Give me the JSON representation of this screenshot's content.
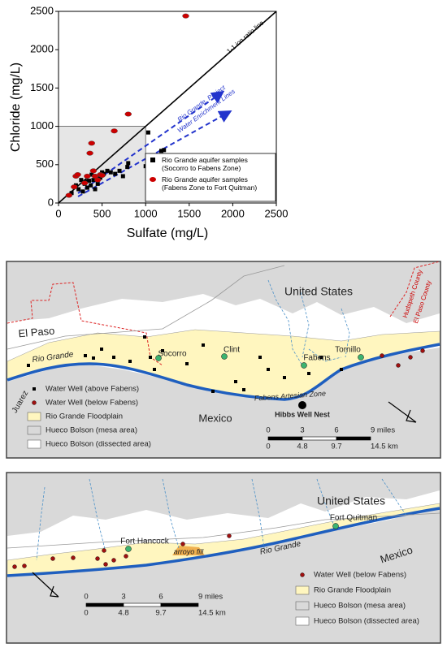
{
  "chart_data": {
    "type": "scatter",
    "xlabel": "Sulfate (mg/L)",
    "ylabel": "Chloride (mg/L)",
    "xlim": [
      0,
      2500
    ],
    "ylim": [
      0,
      2500
    ],
    "xticks": [
      0,
      500,
      1000,
      1500,
      2000,
      2500
    ],
    "yticks": [
      0,
      500,
      1000,
      1500,
      2000,
      2500
    ],
    "annotations": [
      "1-1 ion ratio line",
      "Rio Grande, Project",
      "Water Enrichment Lines"
    ],
    "series": [
      {
        "name": "Rio Grande aquifer samples (Socorro to Fabens Zone)",
        "color": "#000000",
        "marker": "square",
        "x": [
          150,
          200,
          230,
          260,
          280,
          300,
          310,
          330,
          350,
          370,
          380,
          400,
          420,
          450,
          450,
          480,
          500,
          520,
          560,
          600,
          650,
          700,
          740,
          790,
          800,
          1000,
          1030,
          1180,
          1210
        ],
        "y": [
          130,
          230,
          180,
          300,
          150,
          250,
          280,
          200,
          290,
          230,
          370,
          300,
          180,
          250,
          340,
          330,
          400,
          380,
          420,
          400,
          380,
          420,
          350,
          470,
          520,
          480,
          920,
          680,
          690
        ]
      },
      {
        "name": "Rio Grande aquifer samples (Fabens Zone to Fort Quitman)",
        "color": "#cc0000",
        "marker": "ellipse",
        "x": [
          120,
          180,
          200,
          220,
          300,
          330,
          360,
          380,
          400,
          420,
          450,
          480,
          500,
          640,
          800,
          1460
        ],
        "y": [
          100,
          210,
          350,
          370,
          260,
          350,
          650,
          780,
          420,
          350,
          300,
          370,
          360,
          940,
          1160,
          2440
        ]
      }
    ]
  },
  "maps": [
    {
      "labels": [
        "United States",
        "El Paso",
        "Hudspeth County",
        "El Paso County",
        "Rio Grande",
        "Socorro",
        "Clint",
        "Fabens",
        "Tornillo",
        "Fabens Artesian Zone",
        "Hibbs Well Nest",
        "Juarez",
        "Mexico"
      ],
      "legend": [
        "Water Well (above Fabens)",
        "Water Well (below Fabens)",
        "Rio Grande Floodplain",
        "Hueco Bolson (mesa area)",
        "Hueco Bolson (dissected area)"
      ],
      "scale": {
        "miles": [
          "0",
          "3",
          "6",
          "9 miles"
        ],
        "km": [
          "0",
          "4.8",
          "9.7",
          "14.5 km"
        ]
      }
    },
    {
      "labels": [
        "United States",
        "Fort Quitman",
        "Fort Hancock",
        "arroyo fill",
        "Rio Grande",
        "Mexico"
      ],
      "legend": [
        "Water Well (below Fabens)",
        "Rio Grande Floodplain",
        "Hueco Bolson (mesa area)",
        "Hueco Bolson (dissected area)"
      ],
      "scale": {
        "miles": [
          "0",
          "3",
          "6",
          "9 miles"
        ],
        "km": [
          "0",
          "4.8",
          "9.7",
          "14.5 km"
        ]
      }
    }
  ]
}
